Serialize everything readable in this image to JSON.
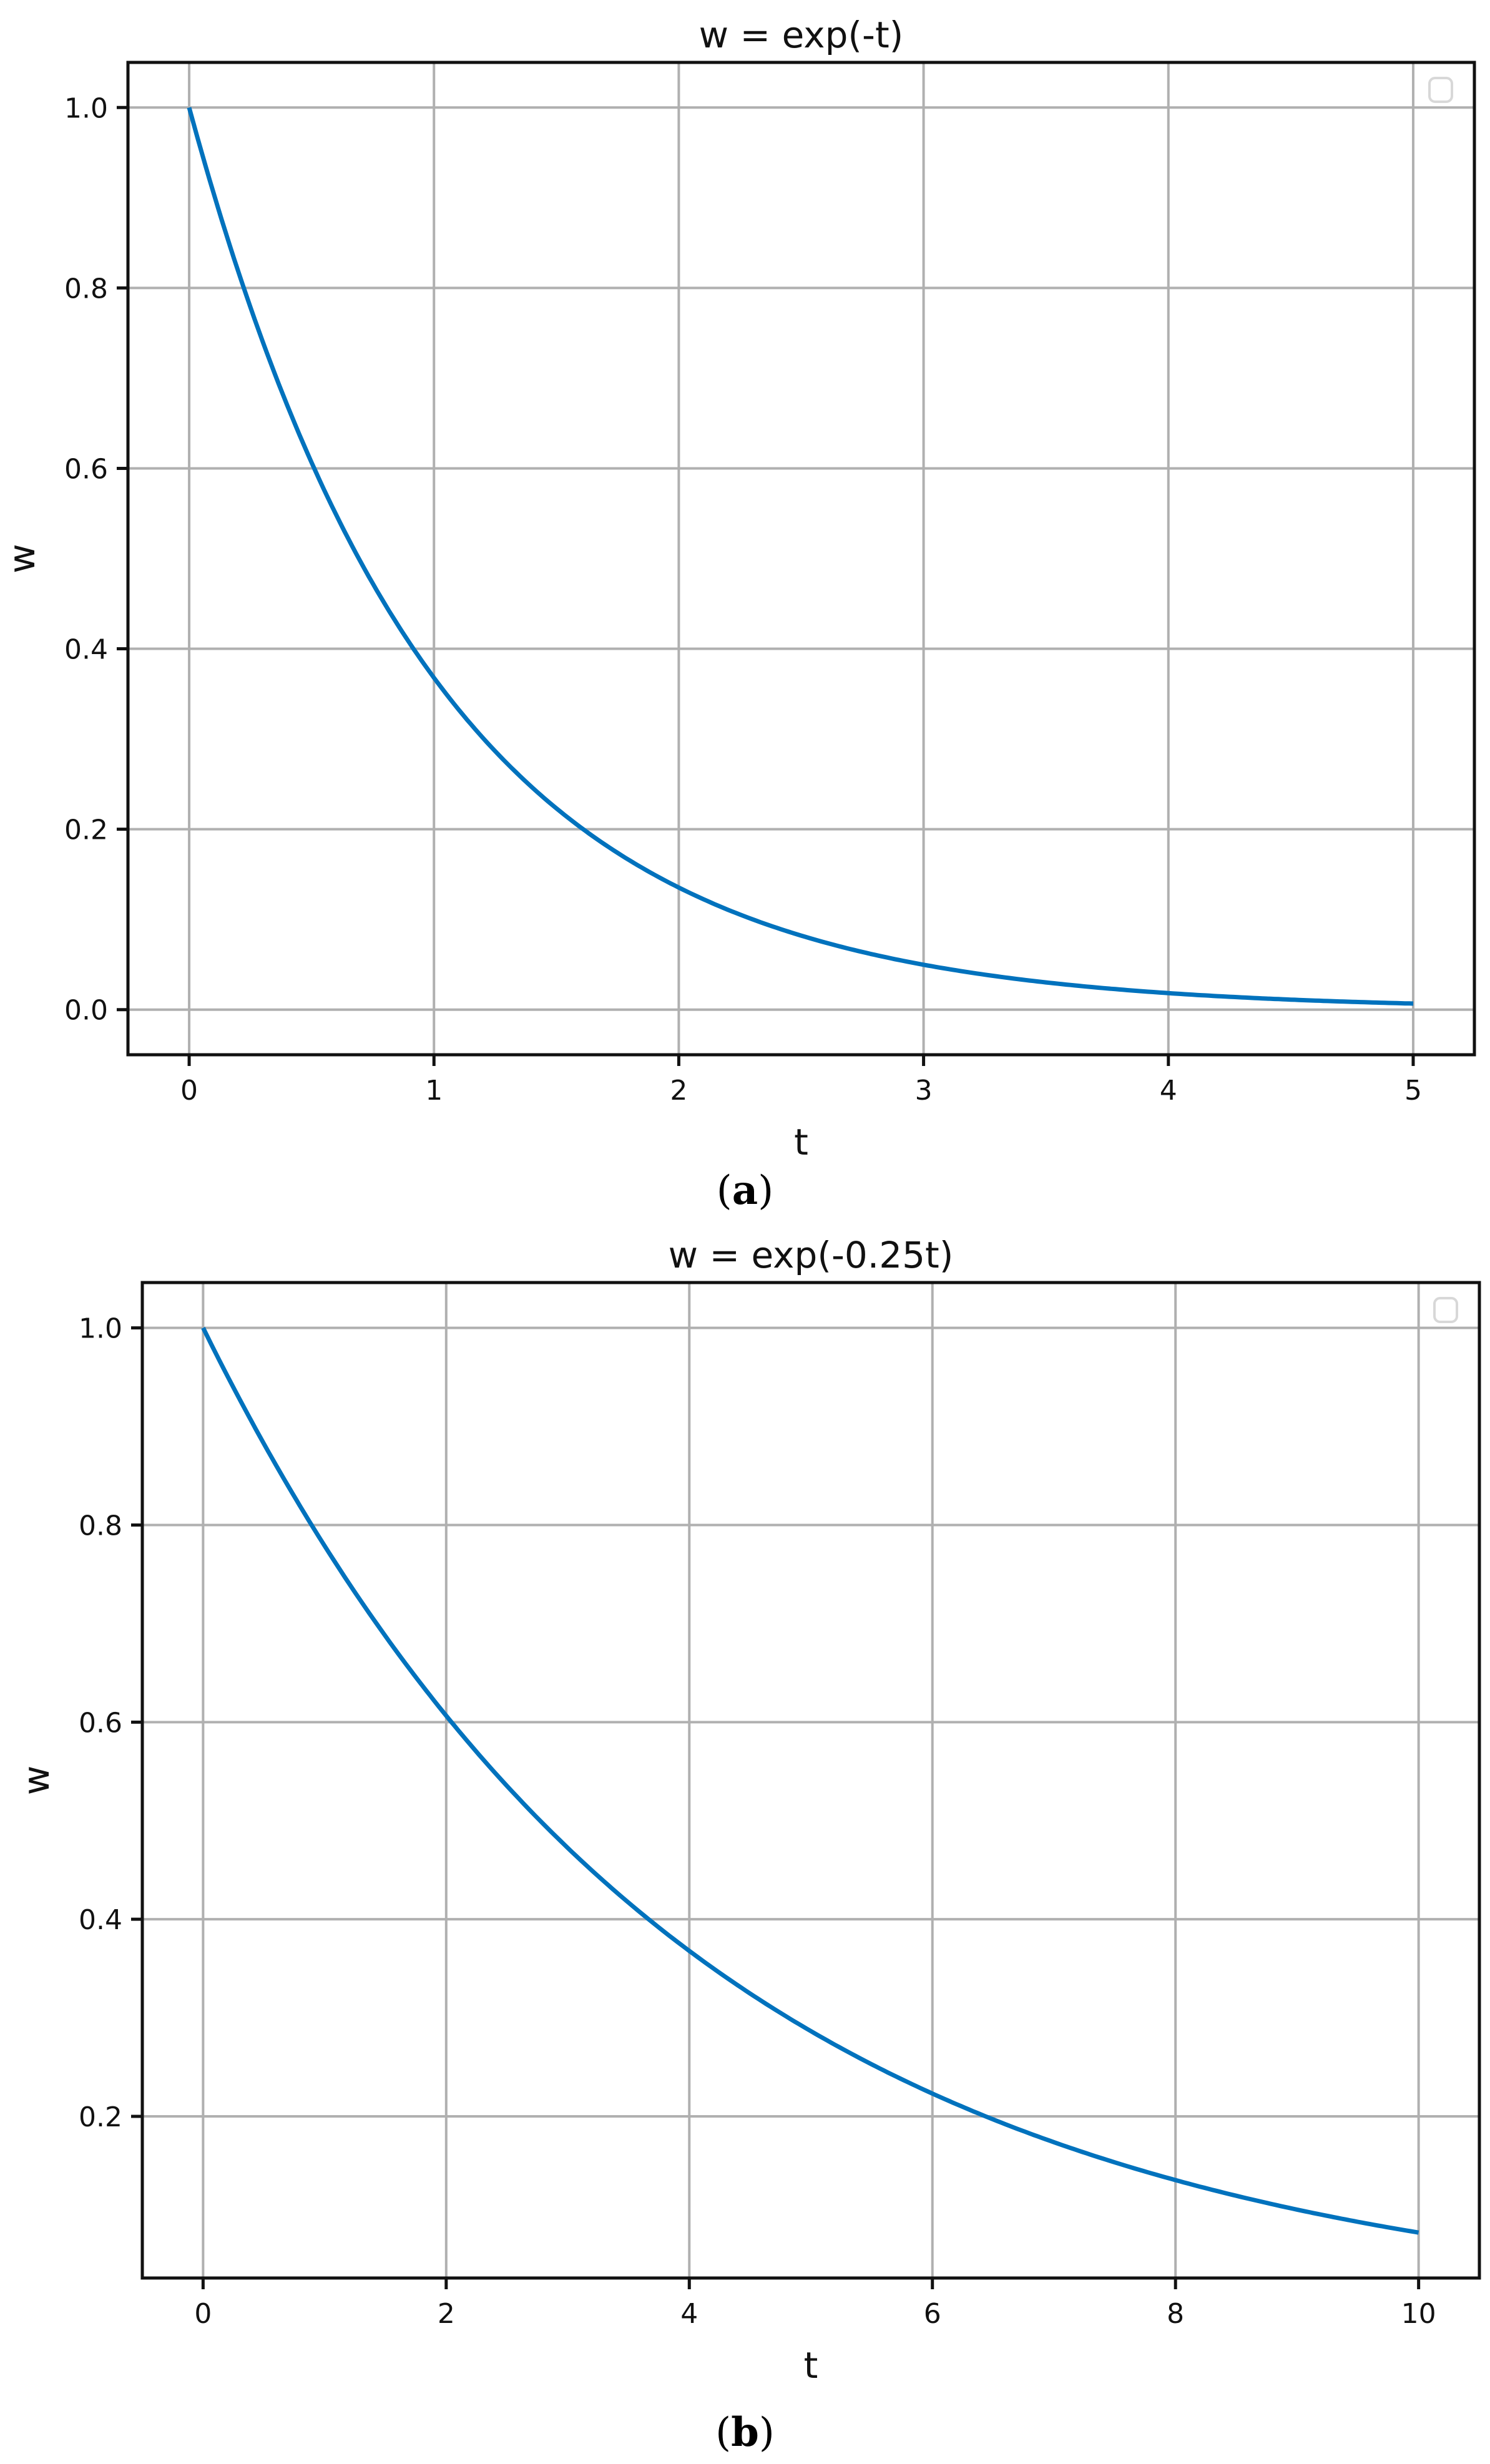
{
  "figure": {
    "panels": [
      {
        "caption": "(a)",
        "caption_letter": "a"
      },
      {
        "caption": "(b)",
        "caption_letter": "b"
      }
    ]
  },
  "chart_data": [
    {
      "type": "line",
      "title": "w = exp(-t)",
      "xlabel": "t",
      "ylabel": "w",
      "xlim": [
        -0.25,
        5.25
      ],
      "ylim": [
        -0.05,
        1.05
      ],
      "xticks": [
        0,
        1,
        2,
        3,
        4,
        5
      ],
      "xtick_labels": [
        "0",
        "1",
        "2",
        "3",
        "4",
        "5"
      ],
      "yticks": [
        0.0,
        0.2,
        0.4,
        0.6,
        0.8,
        1.0
      ],
      "ytick_labels": [
        "0.0",
        "0.2",
        "0.4",
        "0.6",
        "0.8",
        "1.0"
      ],
      "grid": true,
      "legend": {
        "position": "upper right",
        "entries": []
      },
      "line_color": "#0072BD",
      "series": [
        {
          "name": "exp(-t)",
          "x": [
            0,
            0.25,
            0.5,
            0.75,
            1,
            1.25,
            1.5,
            1.75,
            2,
            2.5,
            3,
            3.5,
            4,
            4.5,
            5
          ],
          "values": [
            1.0,
            0.779,
            0.607,
            0.472,
            0.368,
            0.287,
            0.223,
            0.174,
            0.135,
            0.082,
            0.05,
            0.03,
            0.018,
            0.011,
            0.007
          ]
        }
      ]
    },
    {
      "type": "line",
      "title": "w = exp(-0.25t)",
      "xlabel": "t",
      "ylabel": "w",
      "xlim": [
        -0.5,
        10.5
      ],
      "ylim": [
        0.036,
        1.046
      ],
      "xticks": [
        0,
        2,
        4,
        6,
        8,
        10
      ],
      "xtick_labels": [
        "0",
        "2",
        "4",
        "6",
        "8",
        "10"
      ],
      "yticks": [
        0.2,
        0.4,
        0.6,
        0.8,
        1.0
      ],
      "ytick_labels": [
        "0.2",
        "0.4",
        "0.6",
        "0.8",
        "1.0"
      ],
      "grid": true,
      "legend": {
        "position": "upper right",
        "entries": []
      },
      "line_color": "#0072BD",
      "series": [
        {
          "name": "exp(-0.25t)",
          "x": [
            0,
            1,
            2,
            3,
            4,
            5,
            6,
            7,
            8,
            9,
            10
          ],
          "values": [
            1.0,
            0.779,
            0.607,
            0.472,
            0.368,
            0.287,
            0.223,
            0.174,
            0.135,
            0.105,
            0.082
          ]
        }
      ]
    }
  ]
}
